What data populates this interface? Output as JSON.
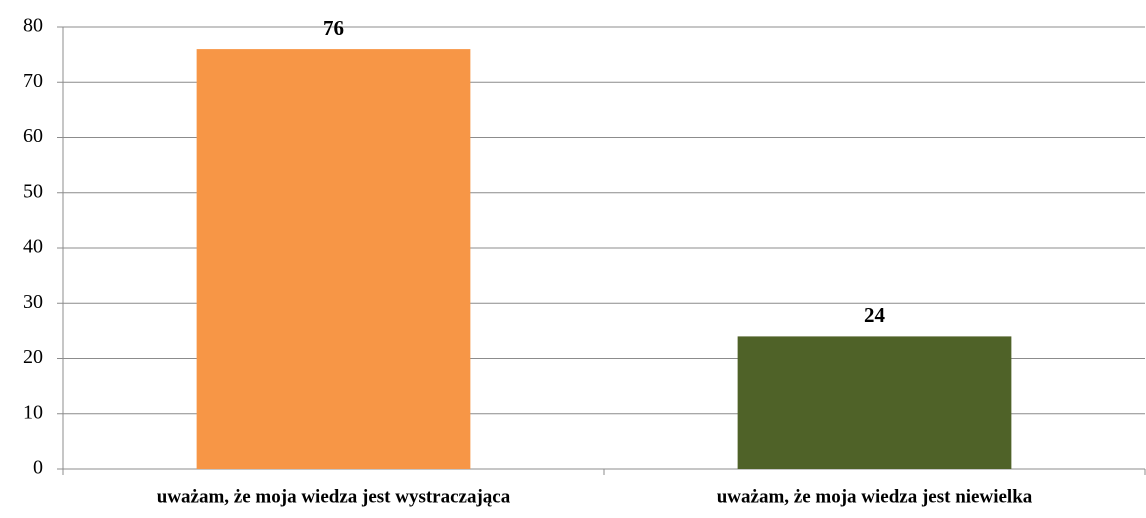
{
  "chart_data": {
    "type": "bar",
    "categories": [
      "uważam, że moja wiedza jest wystraczająca",
      "uważam, że moja wiedza jest niewielka"
    ],
    "values": [
      76,
      24
    ],
    "colors": [
      "#f79646",
      "#4f6228"
    ],
    "ylim": [
      0,
      80
    ],
    "yticks": [
      0,
      10,
      20,
      30,
      40,
      50,
      60,
      70,
      80
    ],
    "grid": true
  }
}
